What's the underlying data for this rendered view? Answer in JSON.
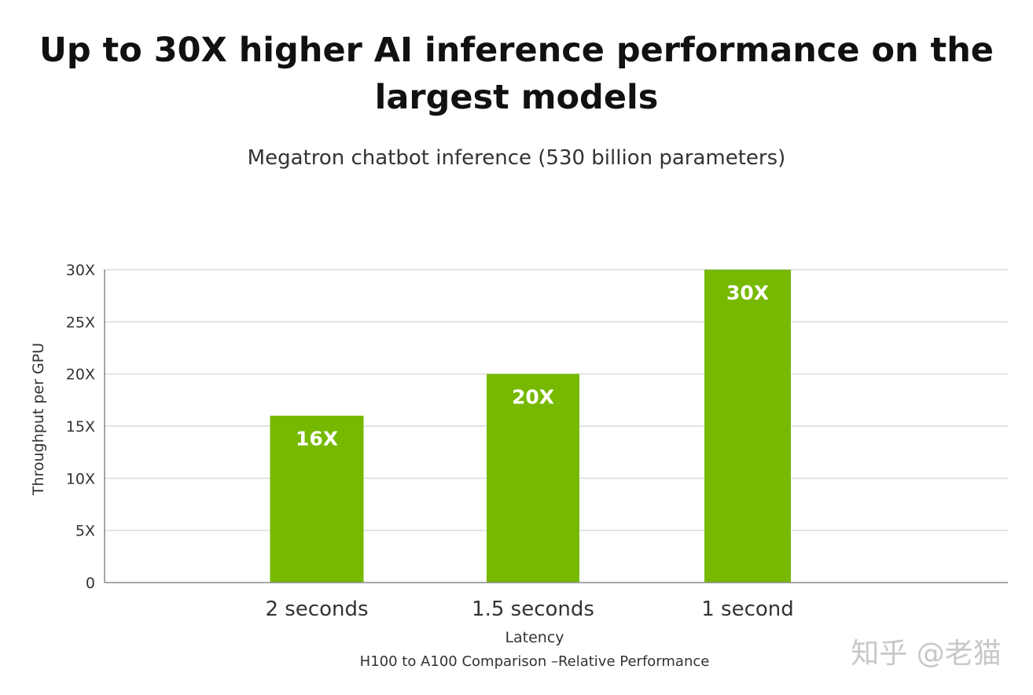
{
  "title": "Up to 30X higher AI inference performance on the largest models",
  "chart_data": {
    "type": "bar",
    "title": "Megatron chatbot inference (530 billion parameters)",
    "xlabel": "Latency",
    "ylabel": "Throughput per GPU",
    "footnote": "H100 to A100 Comparison –Relative Performance",
    "categories": [
      "2 seconds",
      "1.5 seconds",
      "1 second"
    ],
    "values": [
      16,
      20,
      30
    ],
    "data_labels": [
      "16X",
      "20X",
      "30X"
    ],
    "yticks": [
      "0",
      "5X",
      "10X",
      "15X",
      "20X",
      "25X",
      "30X"
    ],
    "ylim": [
      0,
      30
    ],
    "grid": true,
    "bar_color": "#76b900",
    "legend": "none"
  },
  "watermark": "知乎 @老猫"
}
